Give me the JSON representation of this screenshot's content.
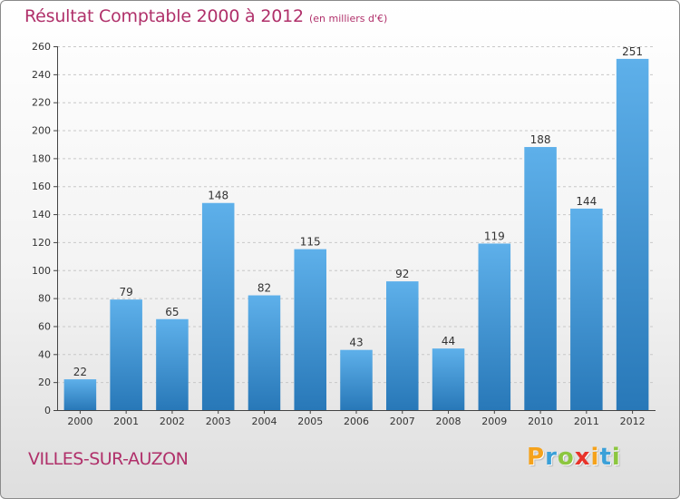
{
  "header": {
    "title": "Résultat Comptable 2000 à 2012",
    "subtitle": "(en milliers d'€)"
  },
  "footer": {
    "town": "VILLES-SUR-AUZON",
    "logo": {
      "letters": [
        "P",
        "r",
        "o",
        "x",
        "i",
        "t",
        "i"
      ],
      "colors": [
        "#f5a21b",
        "#3ba0d8",
        "#8cc63f",
        "#e8332a",
        "#f5a21b",
        "#3ba0d8",
        "#8cc63f"
      ]
    }
  },
  "colors": {
    "text_accent": "#b0306a",
    "bar_top": "#5eb0ea",
    "bar_bottom": "#2878b8"
  },
  "chart_data": {
    "type": "bar",
    "title": "Résultat Comptable 2000 à 2012",
    "subtitle": "(en milliers d'€)",
    "categories": [
      "2000",
      "2001",
      "2002",
      "2003",
      "2004",
      "2005",
      "2006",
      "2007",
      "2008",
      "2009",
      "2010",
      "2011",
      "2012"
    ],
    "values": [
      22,
      79,
      65,
      148,
      82,
      115,
      43,
      92,
      44,
      119,
      188,
      144,
      251
    ],
    "ylim": [
      0,
      260
    ],
    "yticks": [
      0,
      20,
      40,
      60,
      80,
      100,
      120,
      140,
      160,
      180,
      200,
      220,
      240,
      260
    ],
    "grid": true,
    "xlabel": "",
    "ylabel": ""
  }
}
